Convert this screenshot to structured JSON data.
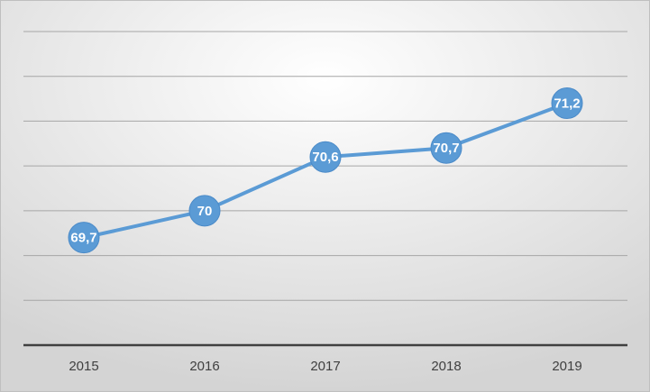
{
  "chart_data": {
    "type": "line",
    "categories": [
      "2015",
      "2016",
      "2017",
      "2018",
      "2019"
    ],
    "values": [
      69.7,
      70,
      70.6,
      70.7,
      71.2
    ],
    "value_labels": [
      "69,7",
      "70",
      "70,6",
      "70,7",
      "71,2"
    ],
    "color": "#5b9bd5",
    "ylim": [
      68.5,
      72
    ],
    "yticks": [
      68.5,
      69,
      69.5,
      70,
      70.5,
      71,
      71.5,
      72
    ],
    "ytick_labels": false,
    "grid": true
  }
}
